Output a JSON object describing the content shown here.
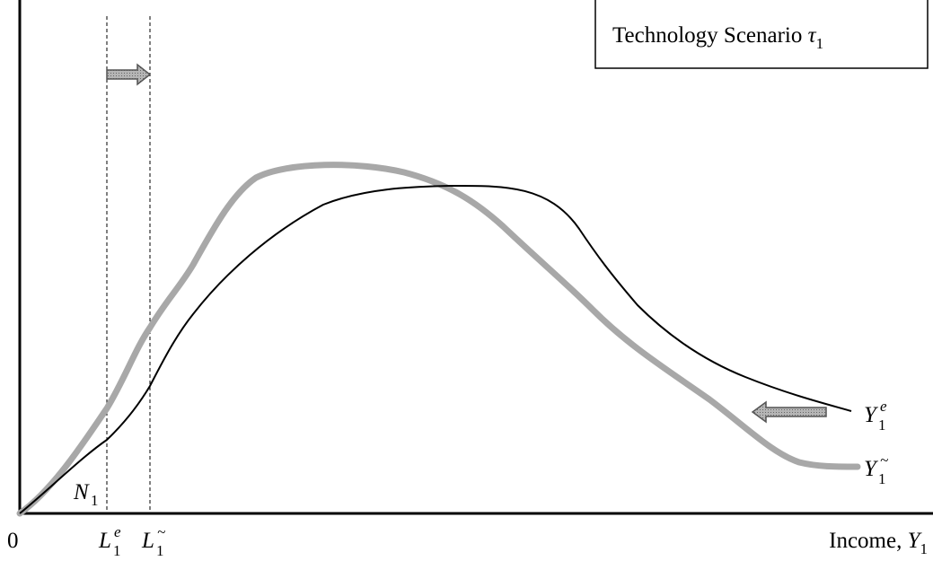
{
  "box_title": {
    "text": "Technology Scenario",
    "symbol": "τ",
    "sub": "1"
  },
  "origin": "0",
  "axis_label": {
    "text": "Income,",
    "symbol": "Y",
    "sub": "1"
  },
  "labels": [
    {
      "symbol": "N",
      "sub": "1"
    },
    {
      "symbol": "L",
      "sub": "1",
      "sup": "e"
    },
    {
      "symbol": "L",
      "sub": "1",
      "sup": "~"
    },
    {
      "symbol": "Y",
      "sub": "1",
      "sup": "e"
    },
    {
      "symbol": "Y",
      "sub": "1",
      "sup": "~"
    }
  ]
}
